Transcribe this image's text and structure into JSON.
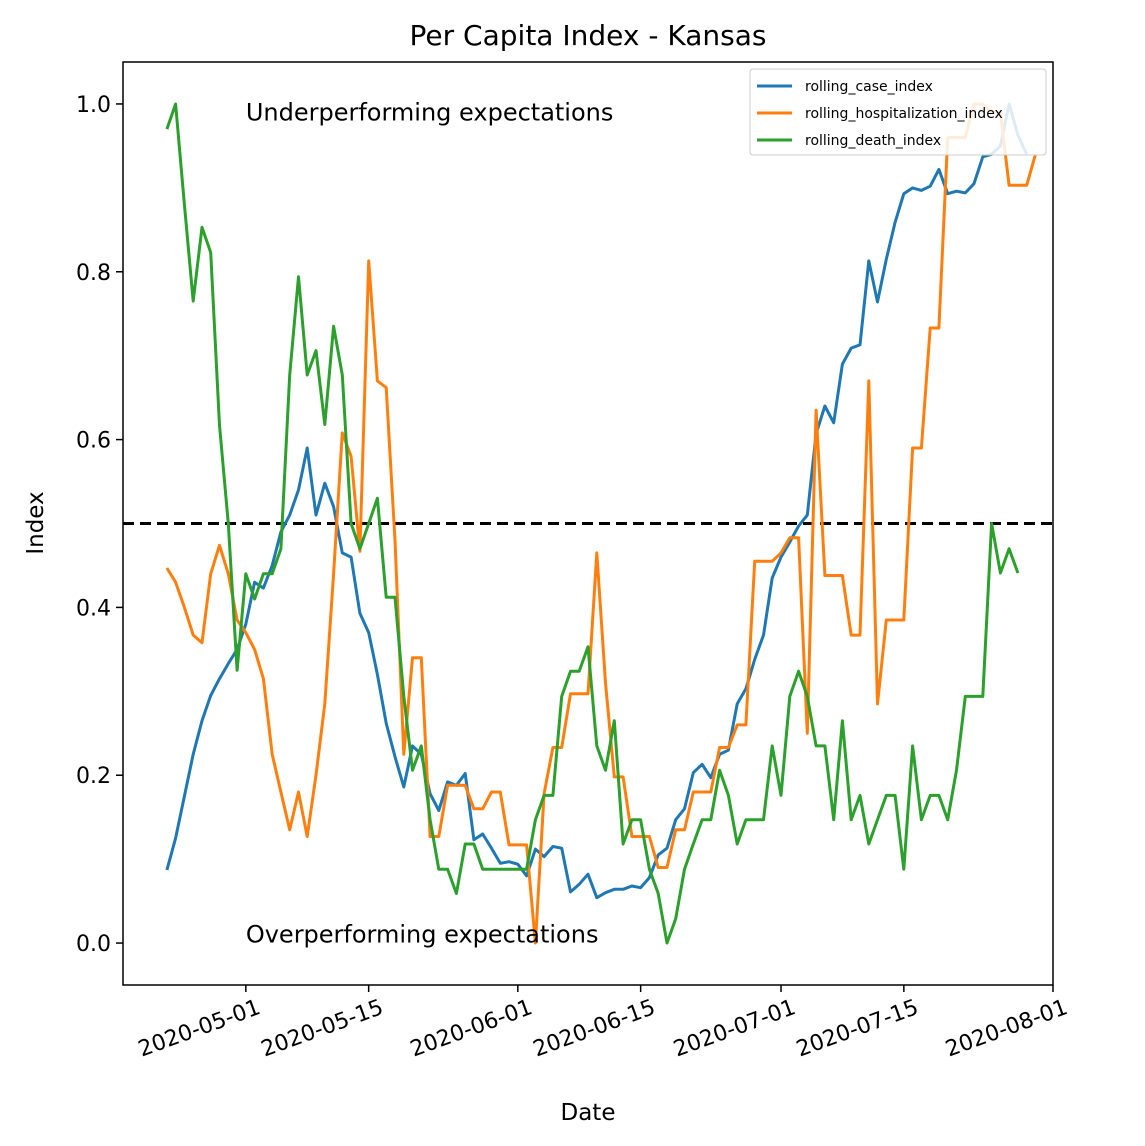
{
  "chart_data": {
    "type": "line",
    "title": "Per Capita Index - Kansas",
    "xlabel": "Date",
    "ylabel": "Index",
    "x_start": "2020-04-22",
    "x_step_days": 1,
    "xlim": [
      "2020-04-17",
      "2020-08-01"
    ],
    "ylim": [
      -0.05,
      1.05
    ],
    "x_ticks": [
      {
        "date": "2020-05-01",
        "label": "2020-05-01"
      },
      {
        "date": "2020-05-15",
        "label": "2020-05-15"
      },
      {
        "date": "2020-06-01",
        "label": "2020-06-01"
      },
      {
        "date": "2020-06-15",
        "label": "2020-06-15"
      },
      {
        "date": "2020-07-01",
        "label": "2020-07-01"
      },
      {
        "date": "2020-07-15",
        "label": "2020-07-15"
      },
      {
        "date": "2020-08-01",
        "label": "2020-08-01"
      }
    ],
    "y_ticks": [
      {
        "value": 0.0,
        "label": "0.0"
      },
      {
        "value": 0.2,
        "label": "0.2"
      },
      {
        "value": 0.4,
        "label": "0.4"
      },
      {
        "value": 0.6,
        "label": "0.6"
      },
      {
        "value": 0.8,
        "label": "0.8"
      },
      {
        "value": 1.0,
        "label": "1.0"
      }
    ],
    "reference_line": {
      "y": 0.5,
      "style": "dashed",
      "color": "#000000"
    },
    "annotations": [
      {
        "text": "Underperforming expectations",
        "date": "2020-05-01",
        "y": 0.99
      },
      {
        "text": "Overperforming expectations",
        "date": "2020-05-01",
        "y": 0.01
      }
    ],
    "legend": {
      "position": "top-right"
    },
    "grid": false,
    "series": [
      {
        "name": "rolling_case_index",
        "color": "#1f77b4",
        "values": [
          0.087,
          0.125,
          0.175,
          0.225,
          0.265,
          0.295,
          0.315,
          0.333,
          0.35,
          0.38,
          0.43,
          0.423,
          0.45,
          0.49,
          0.51,
          0.54,
          0.59,
          0.51,
          0.548,
          0.52,
          0.465,
          0.46,
          0.393,
          0.37,
          0.32,
          0.262,
          0.222,
          0.186,
          0.235,
          0.225,
          0.178,
          0.158,
          0.192,
          0.188,
          0.202,
          0.123,
          0.13,
          0.113,
          0.095,
          0.097,
          0.094,
          0.08,
          0.112,
          0.103,
          0.115,
          0.113,
          0.061,
          0.07,
          0.082,
          0.054,
          0.06,
          0.064,
          0.064,
          0.068,
          0.066,
          0.078,
          0.105,
          0.113,
          0.147,
          0.16,
          0.203,
          0.213,
          0.197,
          0.225,
          0.23,
          0.285,
          0.303,
          0.338,
          0.367,
          0.435,
          0.46,
          0.478,
          0.497,
          0.51,
          0.607,
          0.64,
          0.62,
          0.69,
          0.709,
          0.713,
          0.813,
          0.764,
          0.815,
          0.859,
          0.893,
          0.9,
          0.897,
          0.902,
          0.922,
          0.893,
          0.896,
          0.894,
          0.905,
          0.937,
          0.94,
          0.95,
          1.0,
          0.963,
          0.94
        ]
      },
      {
        "name": "rolling_hospitalization_index",
        "color": "#ff7f0e",
        "values": [
          0.447,
          0.43,
          0.4,
          0.367,
          0.358,
          0.44,
          0.474,
          0.44,
          0.385,
          0.37,
          0.35,
          0.315,
          0.225,
          0.18,
          0.135,
          0.18,
          0.127,
          0.2,
          0.285,
          0.44,
          0.608,
          0.58,
          0.467,
          0.813,
          0.67,
          0.662,
          0.48,
          0.225,
          0.34,
          0.34,
          0.127,
          0.127,
          0.188,
          0.188,
          0.188,
          0.16,
          0.16,
          0.18,
          0.18,
          0.117,
          0.117,
          0.117,
          0.0,
          0.178,
          0.233,
          0.233,
          0.297,
          0.297,
          0.297,
          0.465,
          0.31,
          0.198,
          0.198,
          0.127,
          0.127,
          0.127,
          0.09,
          0.09,
          0.135,
          0.135,
          0.18,
          0.18,
          0.18,
          0.233,
          0.233,
          0.26,
          0.26,
          0.455,
          0.455,
          0.455,
          0.465,
          0.483,
          0.483,
          0.25,
          0.635,
          0.438,
          0.438,
          0.438,
          0.367,
          0.367,
          0.67,
          0.285,
          0.385,
          0.385,
          0.385,
          0.59,
          0.59,
          0.733,
          0.733,
          0.96,
          0.96,
          0.96,
          1.0,
          1.0,
          0.99,
          0.99,
          0.903,
          0.903,
          0.903,
          0.94
        ]
      },
      {
        "name": "rolling_death_index",
        "color": "#2ca02c",
        "values": [
          0.97,
          1.0,
          0.88,
          0.765,
          0.853,
          0.823,
          0.617,
          0.5,
          0.325,
          0.44,
          0.41,
          0.44,
          0.44,
          0.47,
          0.677,
          0.794,
          0.677,
          0.706,
          0.618,
          0.735,
          0.677,
          0.5,
          0.47,
          0.5,
          0.53,
          0.412,
          0.412,
          0.294,
          0.206,
          0.235,
          0.147,
          0.088,
          0.088,
          0.059,
          0.118,
          0.118,
          0.088,
          0.088,
          0.088,
          0.088,
          0.088,
          0.088,
          0.147,
          0.176,
          0.176,
          0.294,
          0.324,
          0.324,
          0.353,
          0.235,
          0.206,
          0.265,
          0.118,
          0.147,
          0.147,
          0.088,
          0.059,
          0.0,
          0.029,
          0.088,
          0.118,
          0.147,
          0.147,
          0.206,
          0.176,
          0.118,
          0.147,
          0.147,
          0.147,
          0.235,
          0.176,
          0.294,
          0.324,
          0.294,
          0.235,
          0.235,
          0.147,
          0.265,
          0.147,
          0.176,
          0.118,
          0.147,
          0.176,
          0.176,
          0.088,
          0.235,
          0.147,
          0.176,
          0.176,
          0.147,
          0.206,
          0.294,
          0.294,
          0.294,
          0.5,
          0.441,
          0.47,
          0.441
        ]
      }
    ]
  }
}
